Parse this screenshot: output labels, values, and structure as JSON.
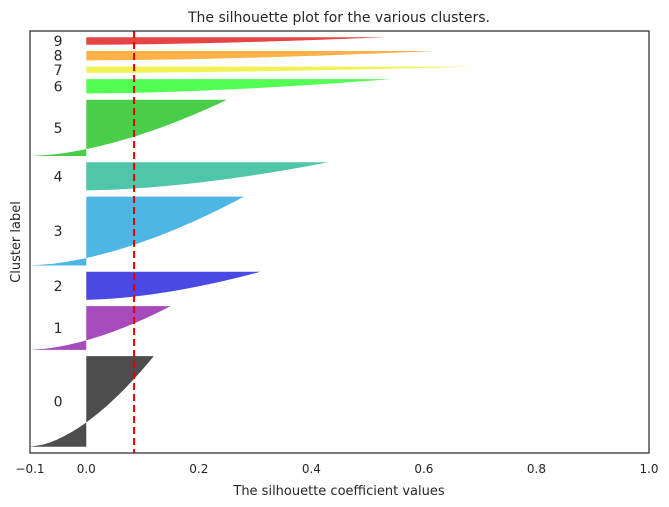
{
  "chart_data": {
    "type": "silhouette",
    "title": "The silhouette plot for the various clusters.",
    "xlabel": "The silhouette coefficient values",
    "ylabel": "Cluster label",
    "xlim": [
      -0.1,
      1.0
    ],
    "xticks": [
      -0.1,
      0.0,
      0.2,
      0.4,
      0.6,
      0.8,
      1.0
    ],
    "xtick_labels": [
      "−0.1",
      "0.0",
      "0.2",
      "0.4",
      "0.6",
      "0.8",
      "1.0"
    ],
    "yticks": [],
    "grid": false,
    "average_silhouette": 0.085,
    "average_line_color": "#e00000",
    "clusters": [
      {
        "label": "0",
        "color": "#3a3a3a",
        "max": 0.12,
        "min": -0.1,
        "band": [
          0,
          145
        ]
      },
      {
        "label": "1",
        "color": "#9c36b5",
        "max": 0.15,
        "min": -0.1,
        "band": [
          155,
          225
        ]
      },
      {
        "label": "2",
        "color": "#3535e0",
        "max": 0.31,
        "min": 0.0,
        "band": [
          235,
          280
        ]
      },
      {
        "label": "3",
        "color": "#3aaee2",
        "max": 0.28,
        "min": -0.1,
        "band": [
          290,
          400
        ]
      },
      {
        "label": "4",
        "color": "#3cc0a0",
        "max": 0.43,
        "min": 0.0,
        "band": [
          410,
          455
        ]
      },
      {
        "label": "5",
        "color": "#36c936",
        "max": 0.25,
        "min": -0.1,
        "band": [
          465,
          555
        ]
      },
      {
        "label": "6",
        "color": "#40ff40",
        "max": 0.54,
        "min": 0.0,
        "band": [
          565,
          588
        ]
      },
      {
        "label": "7",
        "color": "#f0f040",
        "max": 0.69,
        "min": 0.0,
        "band": [
          598,
          608
        ]
      },
      {
        "label": "8",
        "color": "#ffaa33",
        "max": 0.62,
        "min": 0.0,
        "band": [
          618,
          633
        ]
      },
      {
        "label": "9",
        "color": "#e33030",
        "max": 0.53,
        "min": 0.0,
        "band": [
          643,
          655
        ]
      }
    ],
    "ylim": [
      -10,
      665
    ]
  }
}
